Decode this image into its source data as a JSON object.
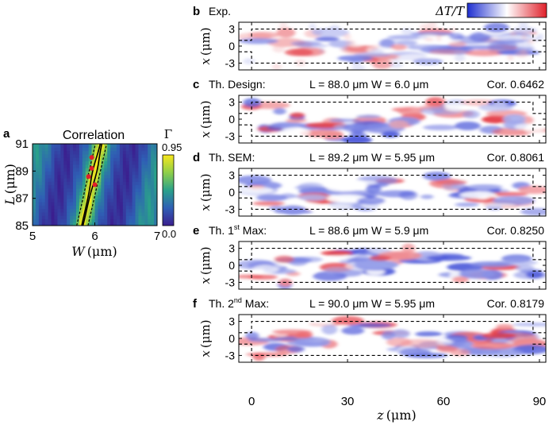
{
  "chart_data": [
    {
      "type": "heatmap",
      "panel": "a",
      "title": "Correlation",
      "xlabel_var": "W",
      "xlabel_unit": "(μm)",
      "ylabel_var": "L",
      "ylabel_unit": "(μm)",
      "xlim": [
        5,
        7
      ],
      "ylim": [
        85,
        91
      ],
      "xticks": [
        "5",
        "6",
        "7"
      ],
      "yticks": [
        "85",
        "87",
        "89",
        "91"
      ],
      "colorbar": {
        "label": "Γ",
        "max_label": "0.95",
        "min_label": "0.0",
        "min": 0.0,
        "max": 0.95
      },
      "colors": {
        "low": "#3b1f8f",
        "mid": "#2aa18a",
        "high": "#f8e71c"
      },
      "ridge": {
        "w_at_lmin": 5.8,
        "w_at_lmax": 6.1
      },
      "markers": [
        {
          "name": "Design",
          "W": 6.0,
          "L": 88.0,
          "color": "#e0202a"
        },
        {
          "name": "SEM",
          "W": 5.95,
          "L": 89.2,
          "color": "#e0202a"
        },
        {
          "name": "1st Max",
          "W": 5.9,
          "L": 88.6,
          "color": "#e0202a"
        },
        {
          "name": "2nd Max",
          "W": 5.95,
          "L": 90.0,
          "color": "#e0202a"
        }
      ]
    },
    {
      "type": "heatmap",
      "panels": [
        {
          "letter": "b",
          "label": "Exp.",
          "seed": 1
        },
        {
          "letter": "c",
          "label": "Th. Design:",
          "params": "L = 88.0 μm W = 6.0 μm",
          "cor": "Cor. 0.6462",
          "seed": 2
        },
        {
          "letter": "d",
          "label": "Th. SEM:",
          "params": "L = 89.2 μm W = 5.95 μm",
          "cor": "Cor. 0.8061",
          "seed": 3
        },
        {
          "letter": "e",
          "label_pre": "Th. 1",
          "label_sup": "st",
          "label_post": " Max:",
          "params": "L = 88.6 μm W = 5.9 μm",
          "cor": "Cor. 0.8250",
          "seed": 4
        },
        {
          "letter": "f",
          "label_pre": "Th. 2",
          "label_sup": "nd",
          "label_post": " Max:",
          "params": "L = 90.0 μm W = 5.95 μm",
          "cor": "Cor. 0.8179",
          "seed": 5
        }
      ],
      "ylabel_var": "x",
      "ylabel_unit": "(μm)",
      "xlabel_var": "z",
      "xlabel_unit": "(μm)",
      "xlim": [
        -4,
        92
      ],
      "ylim": [
        -4.2,
        4.2
      ],
      "xticks": [
        0,
        30,
        60,
        90
      ],
      "yticks": [
        "3",
        "0",
        "-3"
      ],
      "waveguide": {
        "z_start": 0,
        "z_end": 88,
        "half_width": 3
      },
      "colorbar": {
        "label": "ΔT/T",
        "colors": [
          "#1f2fd0",
          "#ffffff",
          "#e0202a"
        ]
      }
    }
  ]
}
